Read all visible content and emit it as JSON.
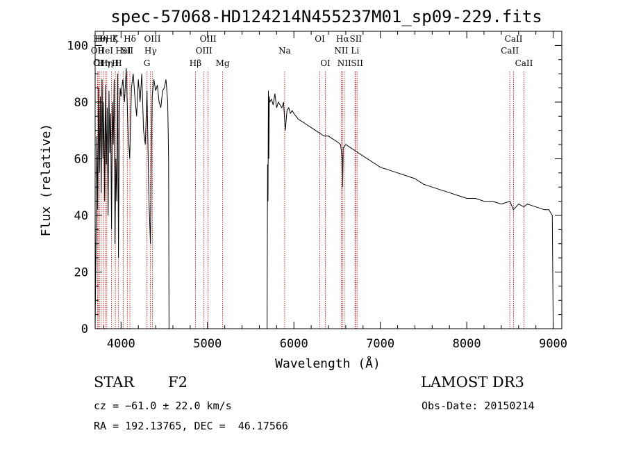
{
  "chart_data": {
    "type": "line",
    "title": "spec-57068-HD124214N455237M01_sp09-229.fits",
    "xlabel": "Wavelength (Å)",
    "ylabel": "Flux (relative)",
    "xlim": [
      3700,
      9100
    ],
    "ylim": [
      0,
      105
    ],
    "xticks": [
      4000,
      5000,
      6000,
      7000,
      8000,
      9000
    ],
    "yticks": [
      0,
      20,
      40,
      60,
      80,
      100
    ],
    "xtick_labels": [
      "4000",
      "5000",
      "6000",
      "7000",
      "8000",
      "9000"
    ],
    "ytick_labels": [
      "0",
      "20",
      "40",
      "60",
      "80",
      "100"
    ],
    "series": [
      {
        "name": "flux",
        "segments": [
          {
            "x": [
              3700,
              3710,
              3720,
              3730,
              3740,
              3750,
              3760,
              3770,
              3780,
              3790,
              3800,
              3810,
              3820,
              3830,
              3840,
              3850,
              3860,
              3870,
              3880,
              3890,
              3900,
              3910,
              3920,
              3930,
              3940,
              3950,
              3960,
              3970,
              3980,
              3990,
              4000,
              4020,
              4040,
              4060,
              4080,
              4100,
              4120,
              4140,
              4160,
              4180,
              4200,
              4220,
              4240,
              4260,
              4280,
              4300,
              4320,
              4340,
              4360,
              4380,
              4400,
              4420,
              4440,
              4460,
              4480,
              4500,
              4520,
              4540,
              4550,
              4555
            ],
            "y": [
              0,
              30,
              68,
              42,
              85,
              55,
              82,
              48,
              88,
              60,
              80,
              45,
              86,
              58,
              78,
              40,
              84,
              62,
              76,
              35,
              80,
              65,
              88,
              30,
              60,
              45,
              90,
              25,
              75,
              85,
              82,
              88,
              80,
              92,
              70,
              60,
              85,
              90,
              82,
              75,
              88,
              80,
              90,
              70,
              65,
              84,
              48,
              30,
              82,
              88,
              84,
              86,
              80,
              78,
              84,
              85,
              88,
              80,
              60,
              0
            ]
          },
          {
            "x": [
              5690,
              5695,
              5700,
              5705,
              5710,
              5715,
              5720,
              5740,
              5760,
              5780,
              5800,
              5820,
              5840,
              5860,
              5880,
              5900,
              5920,
              5940,
              5960,
              5980,
              6000,
              6050,
              6100,
              6150,
              6200,
              6250,
              6300,
              6350,
              6400,
              6450,
              6500,
              6540,
              6560,
              6565,
              6570,
              6580,
              6600,
              6650,
              6700,
              6750,
              6800,
              6900,
              7000,
              7100,
              7200,
              7300,
              7400,
              7500,
              7600,
              7700,
              7800,
              7900,
              8000,
              8100,
              8200,
              8300,
              8400,
              8500,
              8540,
              8600,
              8660,
              8700,
              8800,
              8900,
              8950,
              8990,
              9000
            ],
            "y": [
              0,
              58,
              45,
              84,
              60,
              82,
              80,
              81,
              79,
              83,
              78,
              80,
              79,
              78,
              80,
              70,
              77,
              78,
              76,
              77,
              76,
              74,
              73,
              72,
              71,
              70,
              69,
              68,
              68,
              67,
              66,
              65,
              60,
              50,
              64,
              64,
              65,
              64,
              63,
              62,
              61,
              59,
              57,
              56,
              55,
              54,
              53,
              51,
              50,
              49,
              48,
              47,
              46,
              46,
              45,
              45,
              44,
              45,
              42,
              44,
              43,
              44,
              43,
              42,
              42,
              40,
              0
            ]
          }
        ]
      }
    ],
    "emission_lines": [
      {
        "w": 3727,
        "labels": [
          "OII"
        ],
        "row": 1
      },
      {
        "w": 3734,
        "labels": [
          "OI"
        ],
        "row": 2
      },
      {
        "w": 3750,
        "labels": [
          "Hθ"
        ],
        "row": 0
      },
      {
        "w": 3771,
        "labels": [
          "Hη"
        ],
        "row": 0
      },
      {
        "w": 3798,
        "labels": [
          "Hη"
        ],
        "row": 2
      },
      {
        "w": 3820,
        "labels": [
          "HeI"
        ],
        "row": 1
      },
      {
        "w": 3835,
        "labels": [
          "Hη"
        ],
        "row": 2
      },
      {
        "w": 3889,
        "labels": [
          "Hζ"
        ],
        "row": 0
      },
      {
        "w": 3934,
        "labels": [
          "K"
        ],
        "row": 0
      },
      {
        "w": 3934,
        "labels": [
          "H"
        ],
        "row": 2
      },
      {
        "w": 3968,
        "labels": [
          "H"
        ],
        "row": 2
      },
      {
        "w": 4026,
        "labels": [
          "HeI"
        ],
        "row": 1
      },
      {
        "w": 4072,
        "labels": [
          "SII"
        ],
        "row": 1
      },
      {
        "w": 4102,
        "labels": [
          "Hδ"
        ],
        "row": 0
      },
      {
        "w": 4300,
        "labels": [
          "G"
        ],
        "row": 2
      },
      {
        "w": 4340,
        "labels": [
          "Hγ"
        ],
        "row": 1
      },
      {
        "w": 4363,
        "labels": [
          "OIII"
        ],
        "row": 0
      },
      {
        "w": 4861,
        "labels": [
          "Hβ"
        ],
        "row": 2
      },
      {
        "w": 4959,
        "labels": [
          "OIII"
        ],
        "row": 1
      },
      {
        "w": 5007,
        "labels": [
          "OIII"
        ],
        "row": 0
      },
      {
        "w": 5175,
        "labels": [
          "Mg"
        ],
        "row": 2
      },
      {
        "w": 5893,
        "labels": [
          "Na"
        ],
        "row": 1
      },
      {
        "w": 6300,
        "labels": [
          "OI"
        ],
        "row": 0
      },
      {
        "w": 6364,
        "labels": [
          "OI"
        ],
        "row": 2
      },
      {
        "w": 6548,
        "labels": [
          "NII"
        ],
        "row": 1
      },
      {
        "w": 6563,
        "labels": [
          "Hα"
        ],
        "row": 0
      },
      {
        "w": 6583,
        "labels": [
          "NII"
        ],
        "row": 2
      },
      {
        "w": 6708,
        "labels": [
          "Li"
        ],
        "row": 1
      },
      {
        "w": 6716,
        "labels": [
          "SII"
        ],
        "row": 0
      },
      {
        "w": 6731,
        "labels": [
          "SII"
        ],
        "row": 2
      },
      {
        "w": 8498,
        "labels": [
          "CaII"
        ],
        "row": 1
      },
      {
        "w": 8542,
        "labels": [
          "CaII"
        ],
        "row": 0
      },
      {
        "w": 8662,
        "labels": [
          "CaII"
        ],
        "row": 2
      }
    ],
    "line_color": "#c00000",
    "spectrum_color": "#000000"
  },
  "info": {
    "object_class": "STAR",
    "subclass": "F2",
    "survey": "LAMOST DR3",
    "redshift": "cz = −61.0 ± 22.0 km/s",
    "obs_date": "Obs-Date: 20150214",
    "coords": "RA = 192.13765, DEC =  46.17566"
  }
}
